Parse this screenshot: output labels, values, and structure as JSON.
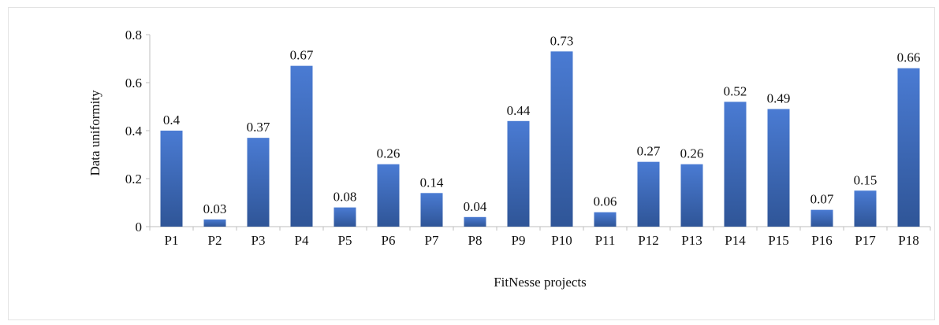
{
  "chart_data": {
    "type": "bar",
    "categories": [
      "P1",
      "P2",
      "P3",
      "P4",
      "P5",
      "P6",
      "P7",
      "P8",
      "P9",
      "P10",
      "P11",
      "P12",
      "P13",
      "P14",
      "P15",
      "P16",
      "P17",
      "P18"
    ],
    "values": [
      0.4,
      0.03,
      0.37,
      0.67,
      0.08,
      0.26,
      0.14,
      0.04,
      0.44,
      0.73,
      0.06,
      0.27,
      0.26,
      0.52,
      0.49,
      0.07,
      0.15,
      0.66
    ],
    "value_labels": [
      "0.4",
      "0.03",
      "0.37",
      "0.67",
      "0.08",
      "0.26",
      "0.14",
      "0.04",
      "0.44",
      "0.73",
      "0.06",
      "0.27",
      "0.26",
      "0.52",
      "0.49",
      "0.07",
      "0.15",
      "0.66"
    ],
    "xlabel": "FitNesse projects",
    "ylabel": "Data uniformity",
    "ylim": [
      0,
      0.8
    ],
    "yticks": [
      0,
      0.2,
      0.4,
      0.6,
      0.8
    ],
    "ytick_labels": [
      "0",
      "0.2",
      "0.4",
      "0.6",
      "0.8"
    ],
    "grid": false,
    "bar_color": "#4472c4",
    "bar_color_dark": "#2f5597"
  }
}
